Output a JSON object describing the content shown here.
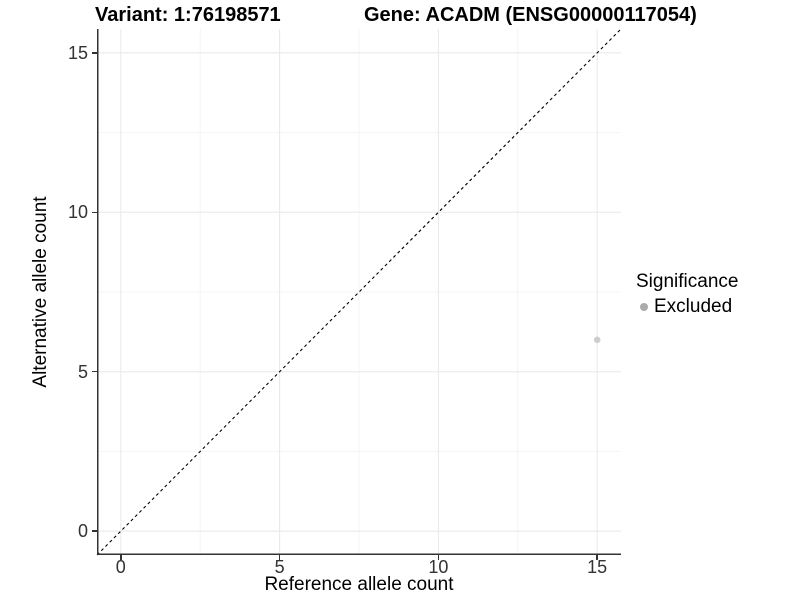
{
  "chart_data": {
    "type": "scatter",
    "title_left": "Variant: 1:76198571",
    "title_right": "Gene: ACADM (ENSG00000117054)",
    "xlabel": "Reference allele count",
    "ylabel": "Alternative allele count",
    "xlim": [
      -0.75,
      15.75
    ],
    "ylim": [
      -0.75,
      15.75
    ],
    "major_ticks": [
      0,
      5,
      10,
      15
    ],
    "minor_gridlines": [
      2.5,
      7.5,
      12.5
    ],
    "grid": "major+minor",
    "reference_line": {
      "type": "identity",
      "style": "dashed",
      "from": [
        -0.75,
        -0.75
      ],
      "to": [
        15.75,
        15.75
      ],
      "color": "#000000"
    },
    "series": [
      {
        "name": "Excluded",
        "color": "#cdcdcd",
        "point_radius": 3.3,
        "points": [
          {
            "x": 15,
            "y": 6
          }
        ]
      }
    ],
    "legend": {
      "title": "Significance",
      "position": "right",
      "entries": [
        {
          "label": "Excluded",
          "color": "#ababab"
        }
      ]
    },
    "colors": {
      "background": "#ffffff",
      "grid_major": "#e8e8e8",
      "grid_minor": "#f4f4f4",
      "axis_line": "#333333",
      "tick_mark": "#333333",
      "tick_text": "#333333"
    }
  }
}
